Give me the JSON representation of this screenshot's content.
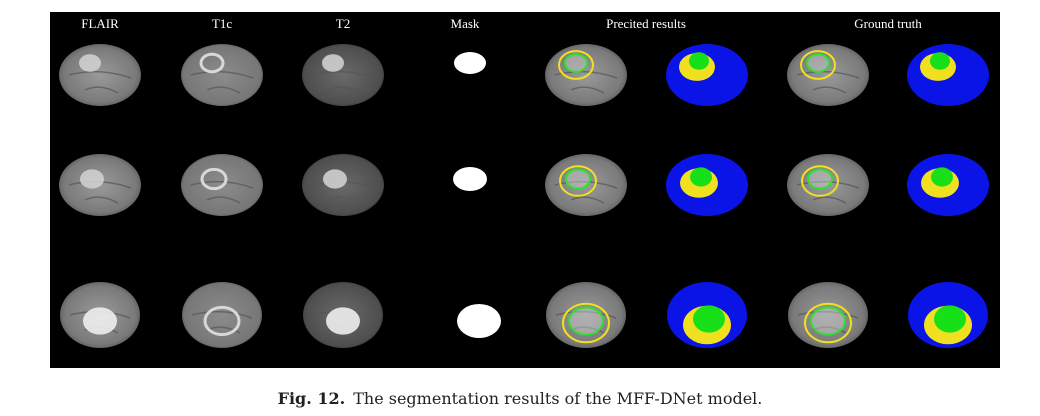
{
  "header": {
    "columns": [
      "FLAIR",
      "T1c",
      "T2",
      "Mask",
      "Precited results",
      "Ground truth"
    ]
  },
  "caption": {
    "label": "Fig. 12.",
    "text": "The segmentation results of the MFF-DNet model."
  }
}
